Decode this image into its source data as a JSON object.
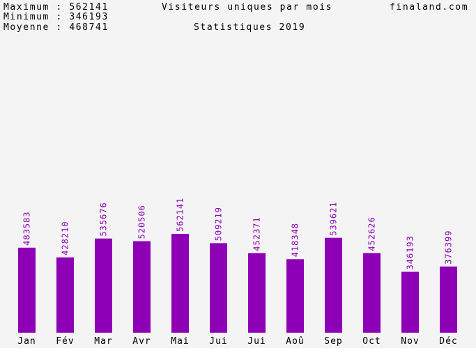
{
  "header": {
    "stats": [
      {
        "label": "Maximum",
        "sep": ":",
        "value": "562141"
      },
      {
        "label": "Minimum",
        "sep": ":",
        "value": "346193"
      },
      {
        "label": "Moyenne",
        "sep": ":",
        "value": "468741"
      }
    ],
    "title": "Visiteurs uniques par mois",
    "subtitle": "Statistiques 2019",
    "site": "finaland.com"
  },
  "colors": {
    "bar": "#8e00b5",
    "value_label": "#8e00b5",
    "background": "#f4f4f4",
    "text": "#000000"
  },
  "chart_data": {
    "type": "bar",
    "title": "Visiteurs uniques par mois",
    "subtitle": "Statistiques 2019",
    "categories": [
      "Jan",
      "Fév",
      "Mar",
      "Avr",
      "Mai",
      "Jui",
      "Jui",
      "Aoû",
      "Sep",
      "Oct",
      "Nov",
      "Déc"
    ],
    "values": [
      483583,
      428210,
      535676,
      520506,
      562141,
      509219,
      452371,
      418348,
      539621,
      452626,
      346193,
      376399
    ],
    "value_labels": [
      "483583",
      "428210",
      "535676",
      "520506",
      "562141",
      "509219",
      "452371",
      "418348",
      "539621",
      "452626",
      "346193",
      "376399"
    ],
    "ylim": [
      0,
      562141
    ],
    "grid": false,
    "legend": "none"
  }
}
